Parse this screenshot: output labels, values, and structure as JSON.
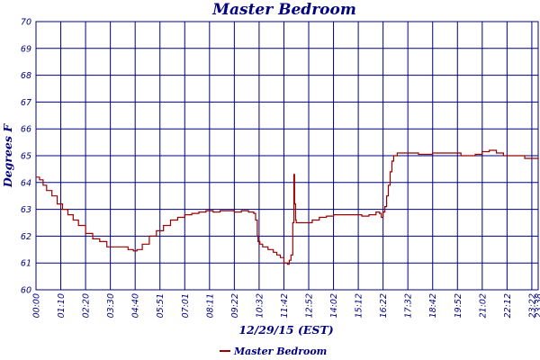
{
  "chart_data": {
    "type": "line",
    "title": "Master Bedroom",
    "xlabel": "12/29/15 (EST)",
    "ylabel": "Degrees F",
    "ylim": [
      60,
      70
    ],
    "yticks": [
      "60",
      "61",
      "62",
      "63",
      "64",
      "65",
      "66",
      "67",
      "68",
      "69",
      "70"
    ],
    "xticks": [
      "00:00",
      "01:10",
      "02:20",
      "03:30",
      "04:40",
      "05:51",
      "07:01",
      "08:11",
      "09:22",
      "10:32",
      "11:42",
      "12:52",
      "14:02",
      "15:12",
      "16:22",
      "17:32",
      "18:42",
      "19:52",
      "21:02",
      "22:12",
      "23:22",
      "23:38"
    ],
    "grid": true,
    "legend_position": "bottom",
    "colors": {
      "series": "#990000",
      "axes": "#000080"
    },
    "series": [
      {
        "name": "Master Bedroom",
        "x": [
          0,
          10,
          20,
          30,
          45,
          60,
          75,
          90,
          105,
          120,
          140,
          160,
          180,
          200,
          220,
          240,
          260,
          275,
          285,
          300,
          320,
          340,
          360,
          380,
          400,
          420,
          440,
          460,
          480,
          500,
          520,
          540,
          560,
          580,
          600,
          615,
          620,
          625,
          627,
          632,
          640,
          655,
          670,
          680,
          690,
          700,
          710,
          715,
          720,
          725,
          728,
          730,
          733,
          735,
          740,
          750,
          760,
          780,
          800,
          820,
          840,
          860,
          880,
          900,
          920,
          940,
          960,
          970,
          975,
          980,
          985,
          990,
          995,
          1000,
          1005,
          1010,
          1020,
          1040,
          1080,
          1120,
          1160,
          1200,
          1240,
          1260,
          1280,
          1300,
          1320,
          1340,
          1360,
          1380,
          1400,
          1418
        ],
        "y": [
          64.2,
          64.1,
          63.9,
          63.7,
          63.5,
          63.2,
          63.0,
          62.8,
          62.6,
          62.4,
          62.1,
          61.9,
          61.8,
          61.6,
          61.6,
          61.6,
          61.5,
          61.45,
          61.5,
          61.7,
          62.0,
          62.2,
          62.4,
          62.6,
          62.7,
          62.8,
          62.85,
          62.9,
          62.95,
          62.9,
          62.95,
          62.95,
          62.9,
          62.95,
          62.9,
          62.85,
          62.6,
          62.0,
          61.8,
          61.7,
          61.6,
          61.5,
          61.4,
          61.3,
          61.2,
          61.0,
          60.95,
          61.1,
          61.3,
          62.5,
          64.3,
          63.2,
          62.6,
          62.5,
          62.5,
          62.5,
          62.5,
          62.6,
          62.7,
          62.75,
          62.8,
          62.8,
          62.8,
          62.8,
          62.75,
          62.8,
          62.9,
          62.85,
          62.7,
          62.9,
          63.1,
          63.5,
          63.9,
          64.4,
          64.8,
          65.0,
          65.1,
          65.1,
          65.05,
          65.1,
          65.1,
          65.0,
          65.05,
          65.15,
          65.2,
          65.1,
          65.0,
          65.0,
          65.0,
          64.9,
          64.9,
          64.85
        ]
      }
    ]
  }
}
